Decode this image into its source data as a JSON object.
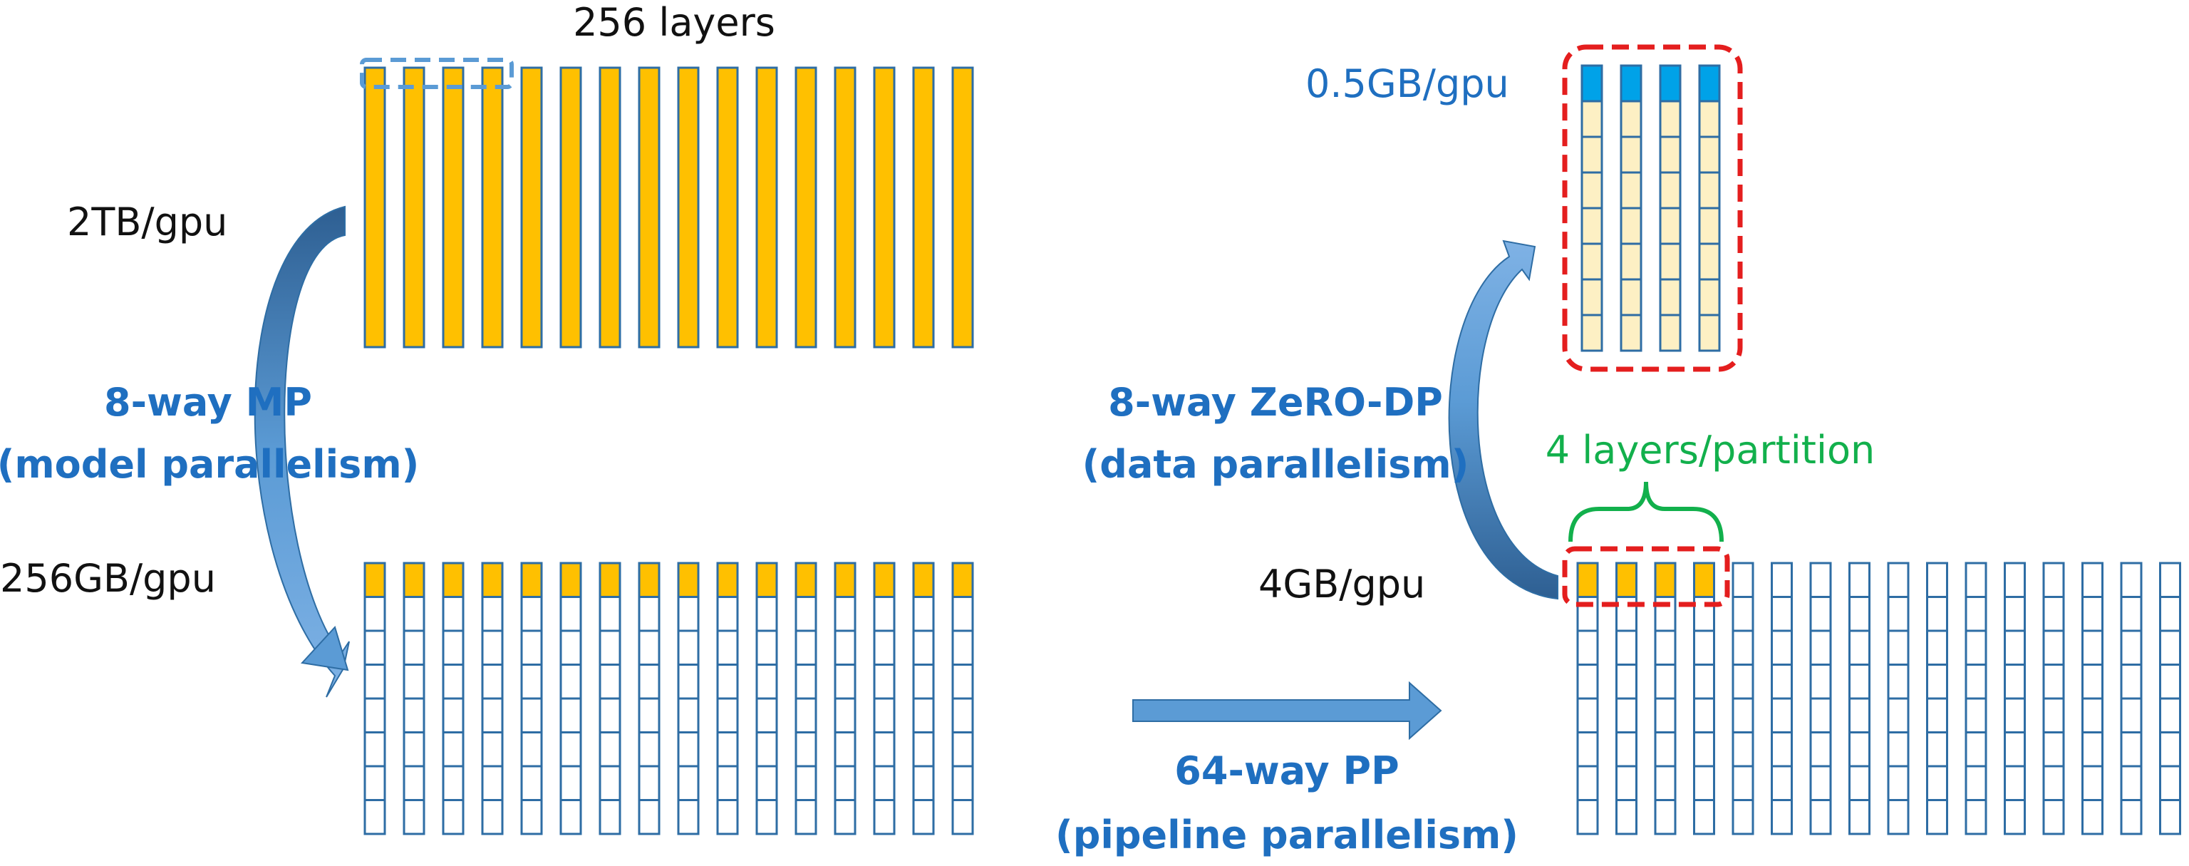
{
  "top_left": {
    "title": "256 layers",
    "memory_label": "2TB/gpu",
    "column_count": 16
  },
  "bottom_left": {
    "memory_label": "256GB/gpu",
    "column_count": 16,
    "cells_per_column": 8
  },
  "mp_step": {
    "line1": "8-way MP",
    "line2": "(model parallelism)"
  },
  "pp_step": {
    "line1": "64-way PP",
    "line2": "(pipeline parallelism)"
  },
  "dp_step": {
    "line1": "8-way ZeRO-DP",
    "line2": "(data parallelism)"
  },
  "bottom_right": {
    "memory_label": "4GB/gpu",
    "partition_label": "4 layers/partition",
    "column_count": 16,
    "cells_per_column": 8
  },
  "top_right": {
    "memory_label": "0.5GB/gpu",
    "column_count": 4,
    "cells_per_column": 8
  },
  "colors": {
    "full_layer": "#ffc000",
    "outline": "#2e6da4",
    "empty_cell": "#ffffff",
    "pale_cell": "#fdf0c4",
    "shard_cell": "#00a2e8",
    "dashed_red": "#e41e1e",
    "dashed_blue": "#5b9bd5",
    "arrow_fill": "#5b9bd5",
    "arrow_dark": "#2e5f92",
    "brace_green": "#12b04c"
  }
}
